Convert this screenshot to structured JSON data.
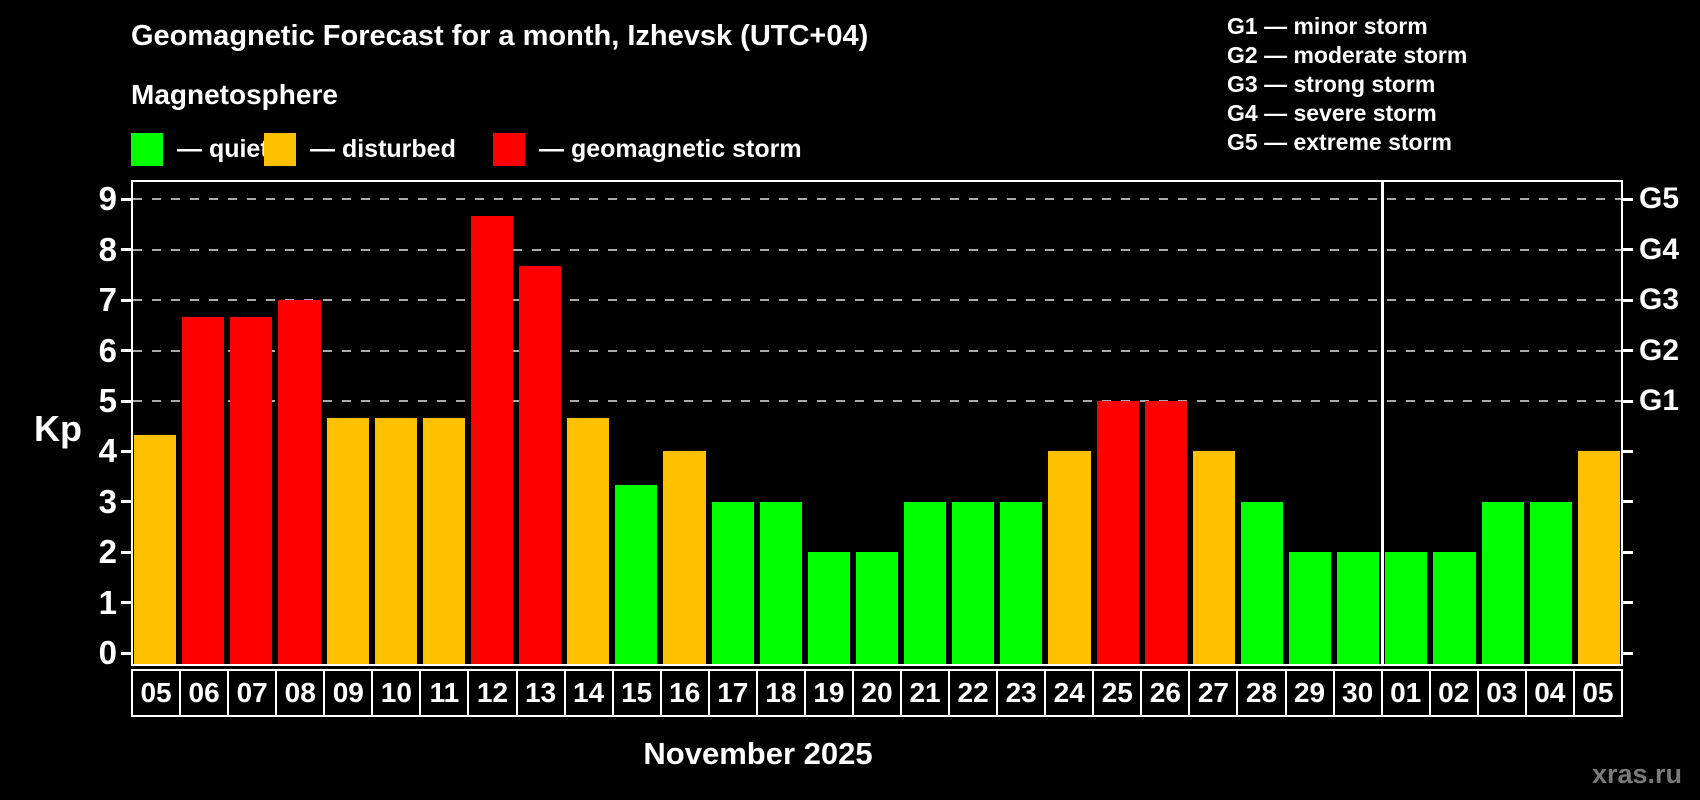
{
  "title": "Geomagnetic Forecast for a month, Izhevsk (UTC+04)",
  "subtitle": "Magnetosphere",
  "legend": {
    "items": [
      {
        "name": "quiet",
        "label": "— quiet",
        "color": "#00ff00"
      },
      {
        "name": "disturbed",
        "label": "— disturbed",
        "color": "#ffc000"
      },
      {
        "name": "storm",
        "label": "— geomagnetic storm",
        "color": "#ff0000"
      }
    ]
  },
  "g_legend": {
    "items": [
      "G1 — minor storm",
      "G2 — moderate storm",
      "G3 — strong storm",
      "G4 — severe storm",
      "G5 — extreme storm"
    ]
  },
  "axis": {
    "y_label": "Kp",
    "y_ticks": [
      0,
      1,
      2,
      3,
      4,
      5,
      6,
      7,
      8,
      9
    ],
    "g_labels": [
      {
        "kp": 5,
        "label": "G1"
      },
      {
        "kp": 6,
        "label": "G2"
      },
      {
        "kp": 7,
        "label": "G3"
      },
      {
        "kp": 8,
        "label": "G4"
      },
      {
        "kp": 9,
        "label": "G5"
      }
    ]
  },
  "month_label": "November 2025",
  "watermark": "xras.ru",
  "chart_data": {
    "type": "bar",
    "title": "Geomagnetic Forecast for a month, Izhevsk (UTC+04)",
    "xlabel": "November 2025",
    "ylabel": "Kp",
    "ylim": [
      0,
      9
    ],
    "grid_kp": [
      5,
      6,
      7,
      8,
      9
    ],
    "legend_position": "top",
    "categories": [
      "05",
      "06",
      "07",
      "08",
      "09",
      "10",
      "11",
      "12",
      "13",
      "14",
      "15",
      "16",
      "17",
      "18",
      "19",
      "20",
      "21",
      "22",
      "23",
      "24",
      "25",
      "26",
      "27",
      "28",
      "29",
      "30",
      "01",
      "02",
      "03",
      "04",
      "05"
    ],
    "values": [
      4.33,
      6.67,
      6.67,
      7.0,
      4.67,
      4.67,
      4.67,
      8.67,
      7.67,
      4.67,
      3.33,
      4.0,
      3.0,
      3.0,
      2.0,
      2.0,
      3.0,
      3.0,
      3.0,
      4.0,
      5.0,
      5.0,
      4.0,
      3.0,
      2.0,
      2.0,
      2.0,
      2.0,
      3.0,
      3.0,
      4.0
    ],
    "statuses": [
      "disturbed",
      "storm",
      "storm",
      "storm",
      "disturbed",
      "disturbed",
      "disturbed",
      "storm",
      "storm",
      "disturbed",
      "quiet",
      "disturbed",
      "quiet",
      "quiet",
      "quiet",
      "quiet",
      "quiet",
      "quiet",
      "quiet",
      "disturbed",
      "storm",
      "storm",
      "disturbed",
      "quiet",
      "quiet",
      "quiet",
      "quiet",
      "quiet",
      "quiet",
      "quiet",
      "disturbed"
    ],
    "series_colors": {
      "quiet": "#00ff00",
      "disturbed": "#ffc000",
      "storm": "#ff0000"
    },
    "month_boundary_after_index": 25
  }
}
